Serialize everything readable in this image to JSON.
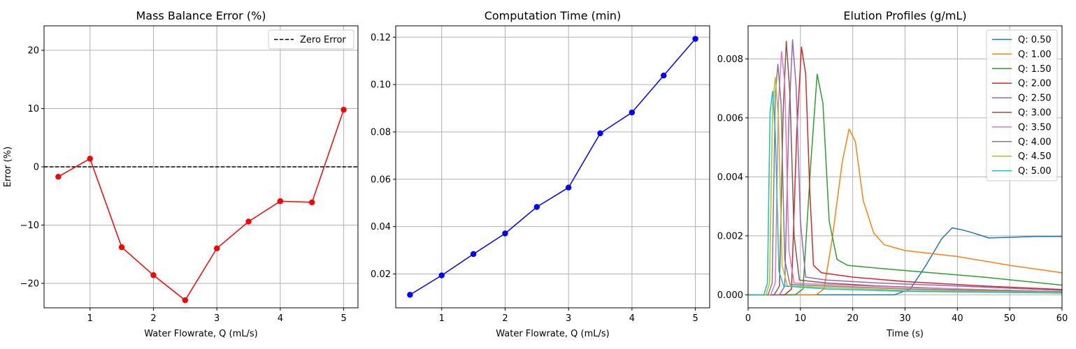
{
  "chart_data": [
    {
      "type": "line",
      "title": "Mass Balance Error (%)",
      "xlabel": "Water Flowrate, Q (mL/s)",
      "ylabel": "Error (%)",
      "xlim": [
        0.275,
        5.225
      ],
      "ylim": [
        -24.2,
        24.2
      ],
      "xticks": [
        1,
        2,
        3,
        4,
        5
      ],
      "yticks": [
        -20,
        -10,
        0,
        10,
        20
      ],
      "grid": true,
      "legend_position": "top-right",
      "series": [
        {
          "color": "#ff0000",
          "marker": "circle",
          "x": [
            0.5,
            1.0,
            1.5,
            2.0,
            2.5,
            3.0,
            3.5,
            4.0,
            4.5,
            5.0
          ],
          "y": [
            -1.7,
            1.4,
            -13.8,
            -18.6,
            -22.9,
            -14.0,
            -9.4,
            -5.9,
            -6.1,
            9.8
          ]
        }
      ],
      "reference_lines": [
        {
          "name": "Zero Error",
          "y": 0,
          "color": "#000000",
          "style": "dashed"
        }
      ]
    },
    {
      "type": "line",
      "title": "Computation Time (min)",
      "xlabel": "Water Flowrate, Q (mL/s)",
      "ylabel": "",
      "xlim": [
        0.275,
        5.225
      ],
      "ylim": [
        0.0057,
        0.1248
      ],
      "xticks": [
        1,
        2,
        3,
        4,
        5
      ],
      "yticks": [
        0.02,
        0.04,
        0.06,
        0.08,
        0.1,
        0.12
      ],
      "ytick_labels": [
        "0.02",
        "0.04",
        "0.06",
        "0.08",
        "0.10",
        "0.12"
      ],
      "grid": true,
      "series": [
        {
          "color": "#0000ff",
          "marker": "circle",
          "x": [
            0.5,
            1.0,
            1.5,
            2.0,
            2.5,
            3.0,
            3.5,
            4.0,
            4.5,
            5.0
          ],
          "y": [
            0.0112,
            0.0194,
            0.0284,
            0.0371,
            0.0483,
            0.0565,
            0.0794,
            0.0882,
            0.1038,
            0.1193
          ]
        }
      ]
    },
    {
      "type": "line",
      "title": "Elution Profiles (g/mL)",
      "xlabel": "Time (s)",
      "ylabel": "",
      "xlim": [
        0,
        60
      ],
      "ylim": [
        -0.00044,
        0.00912
      ],
      "xticks": [
        0,
        10,
        20,
        30,
        40,
        50,
        60
      ],
      "yticks": [
        0,
        0.002,
        0.004,
        0.006,
        0.008
      ],
      "ytick_labels": [
        "0.000",
        "0.002",
        "0.004",
        "0.006",
        "0.008"
      ],
      "grid": true,
      "legend_position": "top-right",
      "series": [
        {
          "name": "Q: 0.50",
          "color": "#1f77b4",
          "x": [
            0,
            28,
            31,
            34,
            37,
            39,
            41,
            43,
            46,
            50,
            55,
            60
          ],
          "y": [
            0,
            0,
            0.0002,
            0.001,
            0.0019,
            0.00227,
            0.0022,
            0.0021,
            0.00193,
            0.00195,
            0.00198,
            0.00198
          ]
        },
        {
          "name": "Q: 1.00",
          "color": "#ff7f0e",
          "x": [
            0,
            13,
            14.5,
            16,
            18,
            19.3,
            20.5,
            22,
            24,
            26,
            30,
            40,
            50,
            60
          ],
          "y": [
            0,
            0,
            0.0002,
            0.0018,
            0.0045,
            0.00562,
            0.0052,
            0.0032,
            0.0021,
            0.0017,
            0.0015,
            0.0013,
            0.001,
            0.00075
          ]
        },
        {
          "name": "Q: 1.50",
          "color": "#2ca02c",
          "x": [
            0,
            9,
            10.5,
            12,
            13.2,
            14.3,
            15.5,
            17,
            19,
            25,
            35,
            45,
            60
          ],
          "y": [
            0,
            0,
            0.0002,
            0.0045,
            0.00748,
            0.0065,
            0.0025,
            0.0012,
            0.001,
            0.0009,
            0.00075,
            0.0006,
            0.00033
          ]
        },
        {
          "name": "Q: 2.00",
          "color": "#d62728",
          "x": [
            0,
            7,
            8.3,
            9.3,
            10.2,
            11,
            11.8,
            12.5,
            14,
            20,
            30,
            45,
            60
          ],
          "y": [
            0,
            0,
            0.0002,
            0.0055,
            0.0084,
            0.0075,
            0.0035,
            0.001,
            0.00075,
            0.0006,
            0.00045,
            0.0003,
            0.00018
          ]
        },
        {
          "name": "Q: 2.50",
          "color": "#9467bd",
          "x": [
            0,
            6,
            7,
            7.8,
            8.5,
            9.2,
            10,
            11,
            15,
            25,
            40,
            60
          ],
          "y": [
            0,
            0,
            0.0003,
            0.006,
            0.00865,
            0.007,
            0.0025,
            0.0006,
            0.0005,
            0.0004,
            0.0003,
            0.00015
          ]
        },
        {
          "name": "Q: 3.00",
          "color": "#8c564b",
          "x": [
            0,
            5,
            6,
            6.7,
            7.3,
            8,
            8.8,
            9.8,
            15,
            25,
            40,
            60
          ],
          "y": [
            0,
            0,
            0.0003,
            0.0062,
            0.0086,
            0.0068,
            0.002,
            0.0005,
            0.0004,
            0.0003,
            0.0002,
            0.0001
          ]
        },
        {
          "name": "Q: 3.50",
          "color": "#e377c2",
          "x": [
            0,
            4.3,
            5.2,
            5.8,
            6.4,
            7,
            7.8,
            8.8,
            15,
            30,
            60
          ],
          "y": [
            0,
            0,
            0.0004,
            0.0065,
            0.00825,
            0.0072,
            0.0015,
            0.0004,
            0.00035,
            0.00025,
            0.0001
          ]
        },
        {
          "name": "Q: 4.00",
          "color": "#7f7f7f",
          "x": [
            0,
            3.8,
            4.6,
            5.2,
            5.7,
            6.3,
            7,
            8,
            15,
            30,
            60
          ],
          "y": [
            0,
            0,
            0.0004,
            0.0068,
            0.00782,
            0.0065,
            0.0012,
            0.00035,
            0.0003,
            0.0002,
            0.0001
          ]
        },
        {
          "name": "Q: 4.50",
          "color": "#bcbd22",
          "x": [
            0,
            3.4,
            4.1,
            4.7,
            5.2,
            5.8,
            6.5,
            7.5,
            15,
            30,
            60
          ],
          "y": [
            0,
            0,
            0.0004,
            0.0065,
            0.00737,
            0.006,
            0.001,
            0.0003,
            0.00025,
            0.00015,
            8e-05
          ]
        },
        {
          "name": "Q: 5.00",
          "color": "#17becf",
          "x": [
            0,
            3,
            3.7,
            4.2,
            4.7,
            5.2,
            5.9,
            6.8,
            15,
            30,
            60
          ],
          "y": [
            0,
            0,
            0.0004,
            0.0062,
            0.0069,
            0.0055,
            0.0008,
            0.0003,
            0.0002,
            0.00012,
            6e-05
          ]
        }
      ]
    }
  ]
}
